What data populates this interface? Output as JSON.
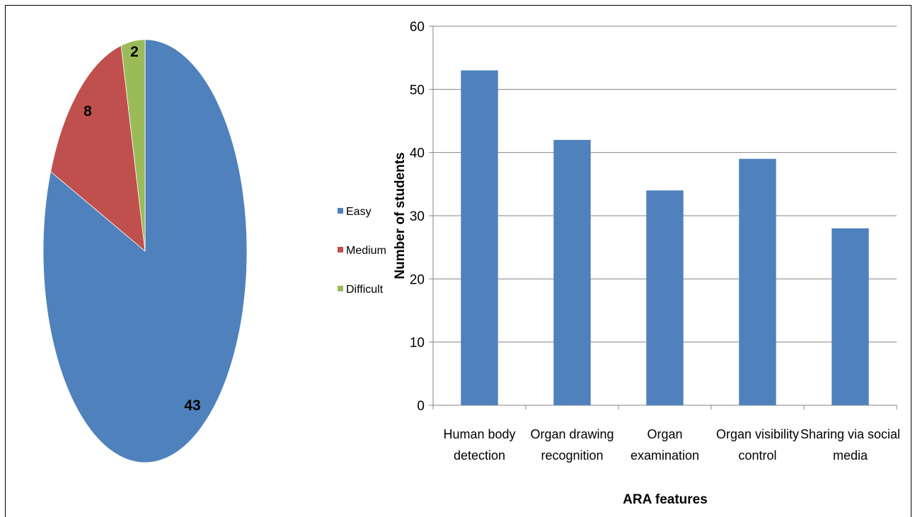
{
  "colors": {
    "easy": "#4f81bd",
    "medium": "#c0504d",
    "difficult": "#9bbb59",
    "bar": "#4f81bd",
    "grid": "#868686"
  },
  "chart_data": [
    {
      "type": "pie",
      "title": "",
      "categories": [
        "Easy",
        "Medium",
        "Difficult"
      ],
      "values": [
        43,
        8,
        2
      ],
      "data_labels": [
        "43",
        "8",
        "2"
      ],
      "legend": {
        "position": "right",
        "entries": [
          "Easy",
          "Medium",
          "Difficult"
        ]
      }
    },
    {
      "type": "bar",
      "title": "",
      "categories": [
        [
          "Human body",
          "detection"
        ],
        [
          "Organ drawing",
          "recognition"
        ],
        [
          "Organ",
          "examination"
        ],
        [
          "Organ visibility",
          "control"
        ],
        [
          "Sharing via social",
          "media"
        ]
      ],
      "values": [
        53,
        42,
        34,
        39,
        28
      ],
      "xlabel": "ARA features",
      "ylabel": "Number of students",
      "ylim": [
        0,
        60
      ],
      "yticks": [
        "0",
        "10",
        "20",
        "30",
        "40",
        "50",
        "60"
      ],
      "grid": true
    }
  ]
}
